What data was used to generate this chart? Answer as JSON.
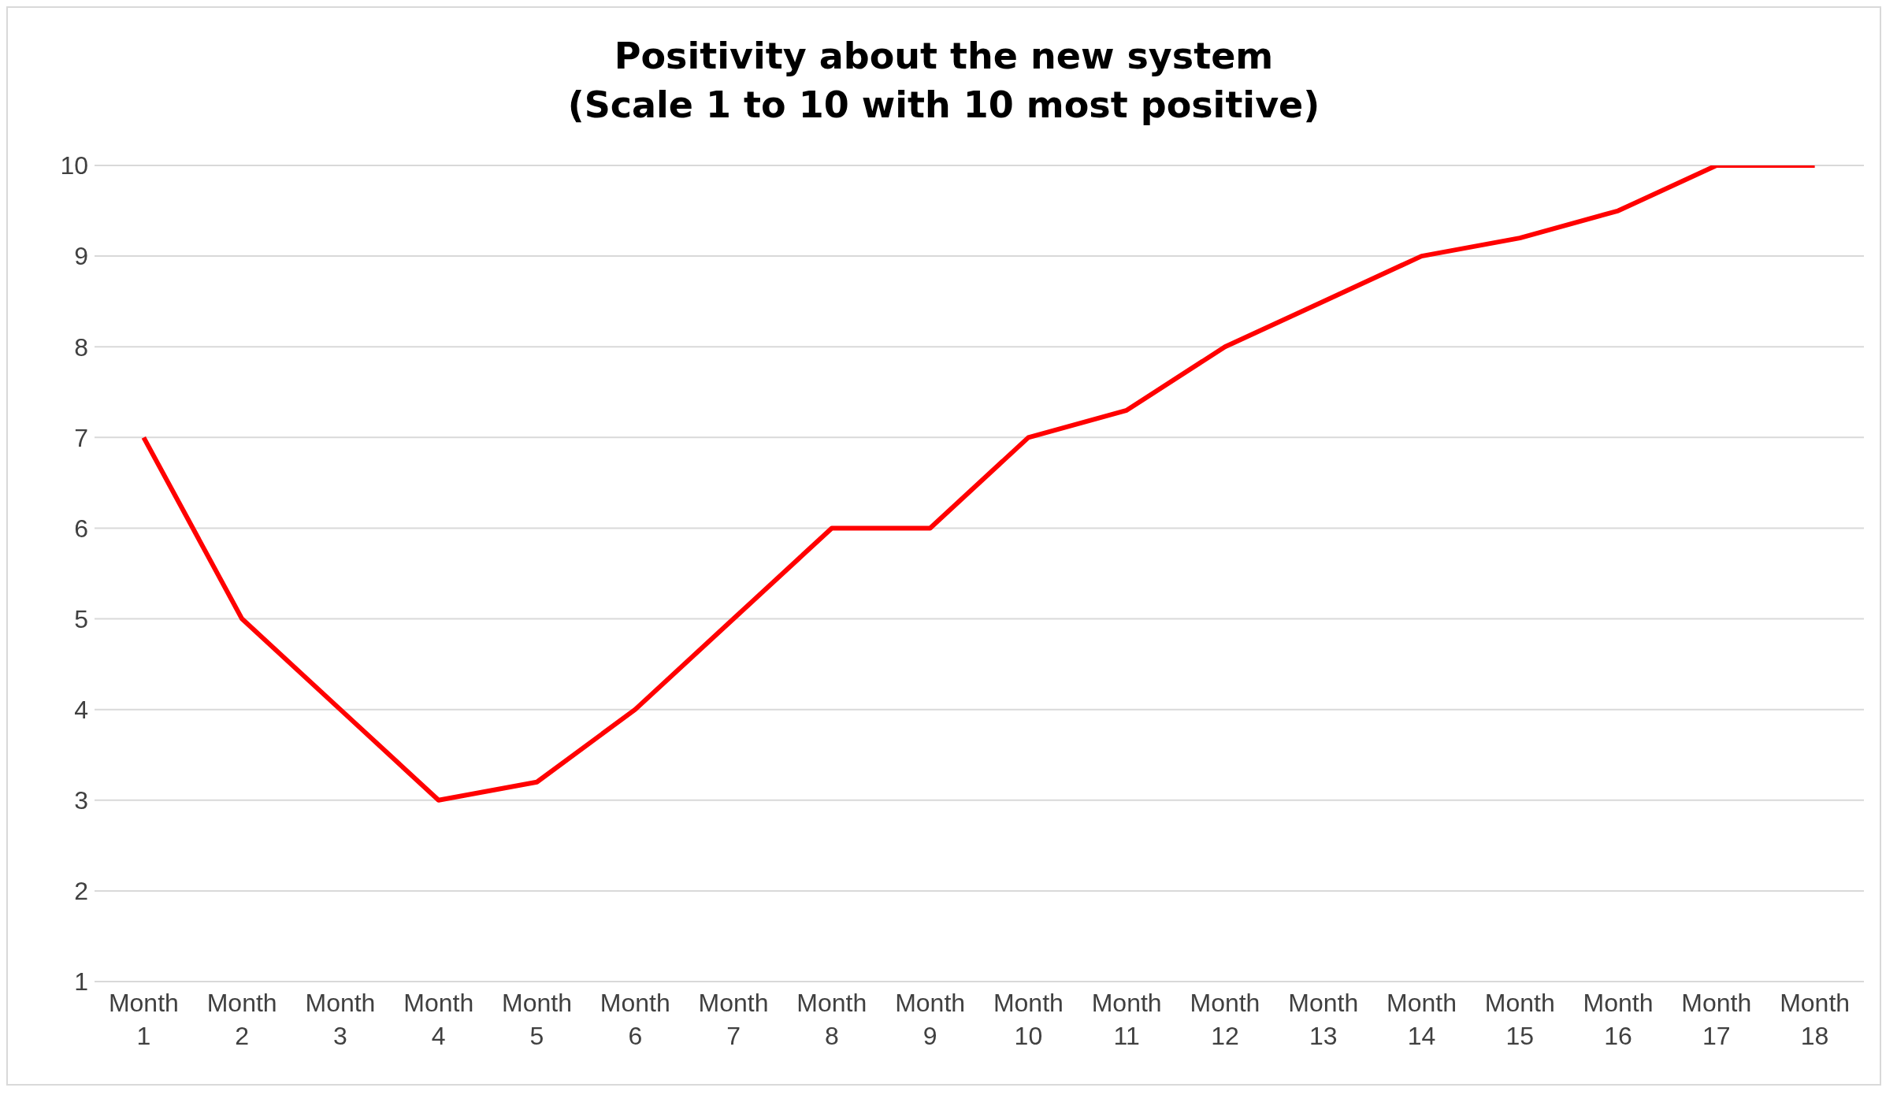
{
  "chart_data": {
    "type": "line",
    "title": "Positivity about the new system\n(Scale 1 to 10 with 10 most positive)",
    "categories": [
      "Month 1",
      "Month 2",
      "Month 3",
      "Month 4",
      "Month 5",
      "Month 6",
      "Month 7",
      "Month 8",
      "Month 9",
      "Month 10",
      "Month 11",
      "Month 12",
      "Month 13",
      "Month 14",
      "Month 15",
      "Month 16",
      "Month 17",
      "Month 18"
    ],
    "series": [
      {
        "color": "#ff0000",
        "values": [
          7,
          5,
          4,
          3,
          3.2,
          4,
          5,
          6,
          6,
          7,
          7.3,
          8,
          8.5,
          9,
          9.2,
          9.5,
          10,
          10
        ]
      }
    ],
    "ylim": [
      1,
      10
    ],
    "yticks": [
      1,
      2,
      3,
      4,
      5,
      6,
      7,
      8,
      9,
      10
    ],
    "grid": "y",
    "legend": false,
    "marker": "none",
    "line_style": "solid"
  }
}
